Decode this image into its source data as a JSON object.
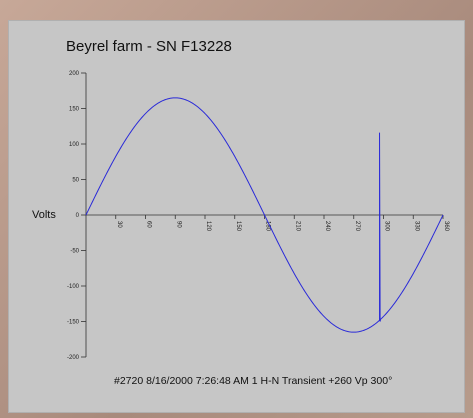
{
  "chart_data": {
    "type": "line",
    "title": "Beyrel farm - SN F13228",
    "ylabel": "Volts",
    "xlabel": "",
    "caption": "#2720  8/16/2000 7:26:48 AM 1 H-N Transient +260 Vp 300°",
    "xlim": [
      0,
      360
    ],
    "ylim": [
      -200,
      200
    ],
    "x_ticks": [
      30,
      60,
      90,
      120,
      150,
      180,
      210,
      240,
      270,
      300,
      330,
      360
    ],
    "y_ticks": [
      200,
      150,
      100,
      50,
      0,
      -50,
      -100,
      -150,
      -200
    ],
    "grid": false,
    "line_color": "#2a2ad8",
    "series": [
      {
        "waveform": "sine",
        "amplitude": 165,
        "transient": {
          "x": 296,
          "high": 116,
          "low": -150
        }
      }
    ]
  }
}
